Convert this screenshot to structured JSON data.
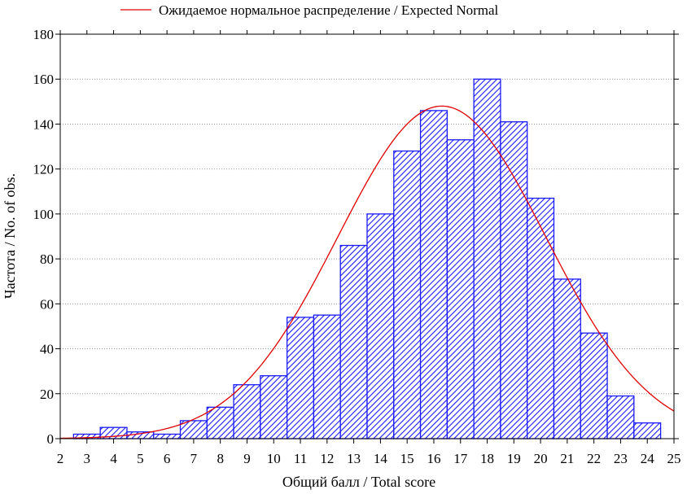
{
  "chart_data": {
    "type": "bar",
    "legend": {
      "position": "top-center",
      "entries": [
        {
          "label": "Ожидаемое нормальное распределение / Expected Normal",
          "color": "#e00000",
          "kind": "line"
        }
      ]
    },
    "xlabel": "Общий балл / Total score",
    "ylabel": "Частота / No. of obs.",
    "xlim": [
      2,
      25
    ],
    "ylim": [
      0,
      180
    ],
    "x_ticks": [
      2,
      3,
      4,
      5,
      6,
      7,
      8,
      9,
      10,
      11,
      12,
      13,
      14,
      15,
      16,
      17,
      18,
      19,
      20,
      21,
      22,
      23,
      24,
      25
    ],
    "y_ticks": [
      0,
      20,
      40,
      60,
      80,
      100,
      120,
      140,
      160,
      180
    ],
    "grid": {
      "horizontal": true,
      "vertical": false,
      "style": "dotted"
    },
    "bars": {
      "color": "#1a1aff",
      "fill_pattern": "diagonal-hatch",
      "bin_width": 1,
      "bin_starts": [
        2.5,
        3.5,
        4.5,
        5.5,
        6.5,
        7.5,
        8.5,
        9.5,
        10.5,
        11.5,
        12.5,
        13.5,
        14.5,
        15.5,
        16.5,
        17.5,
        18.5,
        19.5,
        20.5,
        21.5,
        22.5,
        23.5
      ],
      "values": [
        2,
        5,
        3,
        2,
        8,
        14,
        24,
        28,
        54,
        55,
        86,
        100,
        128,
        146,
        133,
        160,
        141,
        107,
        71,
        47,
        19,
        7
      ]
    },
    "expected_normal": {
      "color": "#e00000",
      "mean": 16.3,
      "sd": 3.9,
      "peak": 148
    }
  }
}
